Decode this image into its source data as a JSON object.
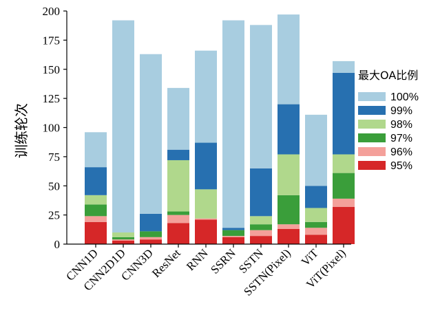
{
  "chart_data": {
    "type": "bar",
    "stacked": true,
    "ylabel": "训练轮次",
    "xlabel": "",
    "ylim": [
      0,
      200
    ],
    "yticks": [
      0,
      25,
      50,
      75,
      100,
      125,
      150,
      175,
      200
    ],
    "categories": [
      "CNN1D",
      "CNN2D1D",
      "CNN3D",
      "ResNet",
      "RNN",
      "SSRN",
      "SSTN",
      "SSTN(Pixel)",
      "ViT",
      "ViT(Pixel)"
    ],
    "legend_title": "最大OA比例",
    "legend_position": "right",
    "series": [
      {
        "name": "95%",
        "color": "#d62728",
        "values": [
          19,
          3,
          4,
          18,
          21,
          6,
          7,
          13,
          8,
          32
        ]
      },
      {
        "name": "96%",
        "color": "#f4a09a",
        "values": [
          5,
          1,
          2,
          7,
          1,
          1,
          5,
          4,
          6,
          7
        ]
      },
      {
        "name": "97%",
        "color": "#3a9e3a",
        "values": [
          10,
          2,
          5,
          3,
          0,
          5,
          5,
          25,
          5,
          22
        ]
      },
      {
        "name": "98%",
        "color": "#b0d88c",
        "values": [
          8,
          4,
          0,
          44,
          25,
          0,
          7,
          35,
          12,
          16
        ]
      },
      {
        "name": "99%",
        "color": "#2770b0",
        "values": [
          24,
          0,
          15,
          9,
          40,
          2,
          41,
          43,
          19,
          70
        ]
      },
      {
        "name": "100%",
        "color": "#a8cde0",
        "values": [
          30,
          182,
          137,
          53,
          79,
          178,
          123,
          77,
          61,
          10
        ]
      }
    ]
  }
}
